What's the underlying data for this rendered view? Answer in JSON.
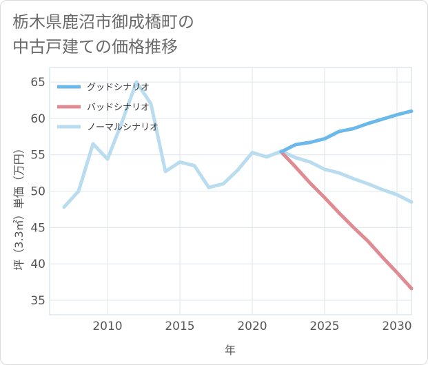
{
  "title_lines": [
    "栃木県鹿沼市御成橋町の",
    "中古戸建ての価格推移"
  ],
  "chart_data": {
    "type": "line",
    "title": "栃木県鹿沼市御成橋町の中古戸建ての価格推移",
    "xlabel": "年",
    "ylabel": "坪（3.3㎡）単価（万円）",
    "xlim": [
      2006,
      2031
    ],
    "ylim": [
      33,
      67
    ],
    "xticks": [
      2010,
      2015,
      2020,
      2025,
      2030
    ],
    "yticks": [
      35,
      40,
      45,
      50,
      55,
      60,
      65
    ],
    "grid": true,
    "legend_position": "top-left",
    "series": [
      {
        "name": "グッドシナリオ",
        "color": "#6bb8ea",
        "x": [
          2022,
          2023,
          2024,
          2025,
          2026,
          2027,
          2028,
          2029,
          2030,
          2031
        ],
        "y": [
          55.4,
          56.4,
          56.7,
          57.2,
          58.2,
          58.6,
          59.3,
          59.9,
          60.5,
          61.0
        ]
      },
      {
        "name": "バッドシナリオ",
        "color": "#e08a91",
        "x": [
          2022,
          2023,
          2024,
          2025,
          2026,
          2027,
          2028,
          2029,
          2030,
          2031
        ],
        "y": [
          55.4,
          53.3,
          51.1,
          49.1,
          47.0,
          45.0,
          43.1,
          40.9,
          38.8,
          36.6
        ]
      },
      {
        "name": "ノーマルシナリオ",
        "color": "#b9dcef",
        "x": [
          2007,
          2008,
          2009,
          2010,
          2011,
          2012,
          2013,
          2014,
          2015,
          2016,
          2017,
          2018,
          2019,
          2020,
          2021,
          2022,
          2023,
          2024,
          2025,
          2026,
          2027,
          2028,
          2029,
          2030,
          2031
        ],
        "y": [
          47.8,
          50.0,
          56.5,
          54.4,
          59.5,
          65.0,
          62.0,
          52.7,
          54.0,
          53.5,
          50.5,
          51.0,
          52.9,
          55.3,
          54.7,
          55.5,
          54.6,
          54.0,
          53.0,
          52.5,
          51.7,
          51.0,
          50.2,
          49.5,
          48.5
        ]
      }
    ]
  }
}
